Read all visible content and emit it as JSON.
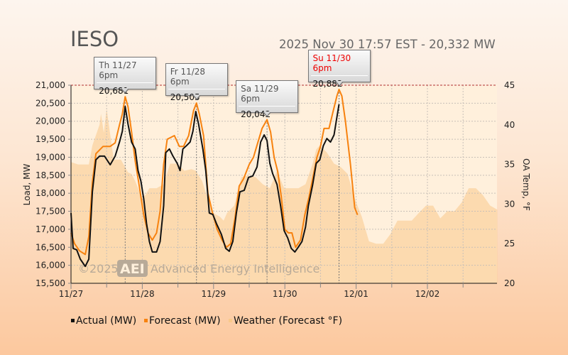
{
  "header": {
    "title": "IESO",
    "subtitle": "2025 Nov 30 17:57 EST - 20,332 MW"
  },
  "colors": {
    "actual": "#111111",
    "forecast": "#f7820f",
    "weather": "#f9c98a",
    "limit": "#b03030"
  },
  "watermark": {
    "year": "©2025",
    "logo": "AEI",
    "text": "Advanced Energy Intelligence"
  },
  "chart_data": {
    "type": "line",
    "x_unit": "days since 11/27 00:00",
    "xlim": [
      0,
      5.98
    ],
    "x_ticks": [
      {
        "v": 0,
        "label": "11/27"
      },
      {
        "v": 1,
        "label": "11/28"
      },
      {
        "v": 2,
        "label": "11/29"
      },
      {
        "v": 3,
        "label": "11/30"
      },
      {
        "v": 4,
        "label": "12/01"
      },
      {
        "v": 5,
        "label": "12/02"
      }
    ],
    "ylabel": "Load, MW",
    "ylim": [
      15500,
      21000
    ],
    "y_ticks": [
      "15,500",
      "16,000",
      "16,500",
      "17,000",
      "17,500",
      "18,000",
      "18,500",
      "19,000",
      "19,500",
      "20,000",
      "20,500",
      "21,000"
    ],
    "y2label": "OA Temp, °F",
    "y2lim": [
      20,
      45
    ],
    "y2_ticks": [
      "20",
      "25",
      "30",
      "35",
      "40",
      "45"
    ],
    "legend_position": "bottom",
    "series": [
      {
        "name": "Actual (MW)",
        "axis": "left",
        "points": [
          [
            0,
            17450
          ],
          [
            0.03,
            16467
          ],
          [
            0.08,
            16430
          ],
          [
            0.13,
            16170
          ],
          [
            0.2,
            15970
          ],
          [
            0.25,
            16170
          ],
          [
            0.3,
            18040
          ],
          [
            0.35,
            18930
          ],
          [
            0.4,
            19030
          ],
          [
            0.47,
            19030
          ],
          [
            0.55,
            18790
          ],
          [
            0.62,
            19030
          ],
          [
            0.68,
            19420
          ],
          [
            0.72,
            19720
          ],
          [
            0.76,
            20410
          ],
          [
            0.8,
            19920
          ],
          [
            0.85,
            19420
          ],
          [
            0.9,
            19230
          ],
          [
            0.94,
            18630
          ],
          [
            0.98,
            18340
          ],
          [
            1.02,
            17850
          ],
          [
            1.06,
            17160
          ],
          [
            1.1,
            16660
          ],
          [
            1.14,
            16370
          ],
          [
            1.2,
            16370
          ],
          [
            1.25,
            16660
          ],
          [
            1.3,
            17650
          ],
          [
            1.33,
            19130
          ],
          [
            1.38,
            19230
          ],
          [
            1.43,
            19030
          ],
          [
            1.49,
            18830
          ],
          [
            1.53,
            18630
          ],
          [
            1.57,
            19230
          ],
          [
            1.62,
            19320
          ],
          [
            1.67,
            19420
          ],
          [
            1.71,
            19720
          ],
          [
            1.75,
            20270
          ],
          [
            1.79,
            19920
          ],
          [
            1.85,
            19230
          ],
          [
            1.89,
            18630
          ],
          [
            1.94,
            17450
          ],
          [
            1.99,
            17410
          ],
          [
            2.04,
            17160
          ],
          [
            2.11,
            16860
          ],
          [
            2.17,
            16470
          ],
          [
            2.22,
            16390
          ],
          [
            2.27,
            16660
          ],
          [
            2.32,
            17450
          ],
          [
            2.37,
            18040
          ],
          [
            2.43,
            18080
          ],
          [
            2.49,
            18440
          ],
          [
            2.55,
            18480
          ],
          [
            2.61,
            18730
          ],
          [
            2.66,
            19420
          ],
          [
            2.71,
            19620
          ],
          [
            2.75,
            19460
          ],
          [
            2.79,
            18830
          ],
          [
            2.83,
            18540
          ],
          [
            2.89,
            18240
          ],
          [
            2.94,
            17650
          ],
          [
            2.99,
            16960
          ],
          [
            3.04,
            16760
          ],
          [
            3.09,
            16470
          ],
          [
            3.14,
            16370
          ],
          [
            3.19,
            16510
          ],
          [
            3.24,
            16660
          ],
          [
            3.29,
            17060
          ],
          [
            3.33,
            17650
          ],
          [
            3.39,
            18240
          ],
          [
            3.44,
            18830
          ],
          [
            3.49,
            18930
          ],
          [
            3.54,
            19320
          ],
          [
            3.59,
            19520
          ],
          [
            3.64,
            19420
          ],
          [
            3.69,
            19620
          ],
          [
            3.73,
            20110
          ],
          [
            3.76,
            20470
          ]
        ]
      },
      {
        "name": "Forecast (MW)",
        "axis": "left",
        "points": [
          [
            0,
            16900
          ],
          [
            0.05,
            16600
          ],
          [
            0.12,
            16400
          ],
          [
            0.2,
            16300
          ],
          [
            0.25,
            16800
          ],
          [
            0.3,
            18300
          ],
          [
            0.35,
            19100
          ],
          [
            0.45,
            19300
          ],
          [
            0.55,
            19300
          ],
          [
            0.62,
            19400
          ],
          [
            0.68,
            19900
          ],
          [
            0.72,
            20200
          ],
          [
            0.76,
            20681
          ],
          [
            0.8,
            20400
          ],
          [
            0.85,
            19700
          ],
          [
            0.9,
            18900
          ],
          [
            0.95,
            18300
          ],
          [
            1.02,
            17400
          ],
          [
            1.08,
            16900
          ],
          [
            1.14,
            16700
          ],
          [
            1.2,
            16900
          ],
          [
            1.25,
            17500
          ],
          [
            1.3,
            18800
          ],
          [
            1.35,
            19500
          ],
          [
            1.45,
            19600
          ],
          [
            1.52,
            19300
          ],
          [
            1.58,
            19300
          ],
          [
            1.65,
            19600
          ],
          [
            1.72,
            20300
          ],
          [
            1.76,
            20505
          ],
          [
            1.8,
            20200
          ],
          [
            1.86,
            19600
          ],
          [
            1.92,
            18000
          ],
          [
            1.98,
            17500
          ],
          [
            2.05,
            17000
          ],
          [
            2.12,
            16700
          ],
          [
            2.18,
            16500
          ],
          [
            2.24,
            16600
          ],
          [
            2.3,
            17300
          ],
          [
            2.36,
            18200
          ],
          [
            2.42,
            18400
          ],
          [
            2.5,
            18800
          ],
          [
            2.56,
            19000
          ],
          [
            2.62,
            19400
          ],
          [
            2.68,
            19800
          ],
          [
            2.75,
            20042
          ],
          [
            2.8,
            19700
          ],
          [
            2.85,
            19000
          ],
          [
            2.9,
            18600
          ],
          [
            2.95,
            17900
          ],
          [
            3,
            17000
          ],
          [
            3.05,
            16900
          ],
          [
            3.1,
            16900
          ],
          [
            3.15,
            16500
          ],
          [
            3.22,
            16700
          ],
          [
            3.28,
            17400
          ],
          [
            3.34,
            17900
          ],
          [
            3.4,
            18500
          ],
          [
            3.45,
            19000
          ],
          [
            3.5,
            19300
          ],
          [
            3.55,
            19800
          ],
          [
            3.62,
            19800
          ],
          [
            3.68,
            20300
          ],
          [
            3.73,
            20700
          ],
          [
            3.76,
            20882
          ],
          [
            3.8,
            20700
          ],
          [
            3.85,
            20000
          ],
          [
            3.92,
            18800
          ],
          [
            3.98,
            17600
          ],
          [
            4.02,
            17400
          ]
        ]
      },
      {
        "name": "Weather (Forecast °F)",
        "axis": "right",
        "type": "area",
        "points": [
          [
            0,
            35.3
          ],
          [
            0.1,
            35
          ],
          [
            0.25,
            35
          ],
          [
            0.3,
            37.4
          ],
          [
            0.4,
            40
          ],
          [
            0.42,
            41.4
          ],
          [
            0.46,
            39
          ],
          [
            0.5,
            42
          ],
          [
            0.55,
            38.8
          ],
          [
            0.6,
            35.6
          ],
          [
            0.7,
            35.6
          ],
          [
            0.8,
            34
          ],
          [
            0.85,
            33.8
          ],
          [
            0.9,
            32.9
          ],
          [
            1,
            30.7
          ],
          [
            1.05,
            31.2
          ],
          [
            1.1,
            32
          ],
          [
            1.2,
            32
          ],
          [
            1.3,
            32.5
          ],
          [
            1.39,
            35.1
          ],
          [
            1.49,
            35.1
          ],
          [
            1.59,
            34.2
          ],
          [
            1.69,
            34.4
          ],
          [
            1.75,
            34.2
          ],
          [
            1.84,
            32.9
          ],
          [
            1.89,
            31.5
          ],
          [
            1.99,
            28.9
          ],
          [
            2.09,
            28.4
          ],
          [
            2.14,
            27.9
          ],
          [
            2.19,
            28.9
          ],
          [
            2.29,
            29.8
          ],
          [
            2.39,
            33.4
          ],
          [
            2.49,
            33.6
          ],
          [
            2.59,
            33.4
          ],
          [
            2.69,
            32.5
          ],
          [
            2.79,
            32
          ],
          [
            2.89,
            34.2
          ],
          [
            2.99,
            32
          ],
          [
            3.09,
            32
          ],
          [
            3.19,
            32
          ],
          [
            3.29,
            32.5
          ],
          [
            3.39,
            35.1
          ],
          [
            3.44,
            36.9
          ],
          [
            3.49,
            37.4
          ],
          [
            3.59,
            36.5
          ],
          [
            3.69,
            35.1
          ],
          [
            3.78,
            34.7
          ],
          [
            3.88,
            33.8
          ],
          [
            3.98,
            30.7
          ],
          [
            4.08,
            28.4
          ],
          [
            4.18,
            25.3
          ],
          [
            4.28,
            25
          ],
          [
            4.38,
            25
          ],
          [
            4.48,
            26.2
          ],
          [
            4.58,
            27.9
          ],
          [
            4.68,
            27.9
          ],
          [
            4.78,
            27.9
          ],
          [
            4.88,
            28.9
          ],
          [
            4.98,
            29.8
          ],
          [
            5.08,
            29.8
          ],
          [
            5.18,
            28.2
          ],
          [
            5.28,
            29.1
          ],
          [
            5.38,
            29.1
          ],
          [
            5.48,
            30.2
          ],
          [
            5.58,
            32
          ],
          [
            5.68,
            32
          ],
          [
            5.78,
            31.1
          ],
          [
            5.88,
            29.8
          ],
          [
            5.98,
            29.3
          ]
        ]
      }
    ],
    "annotations": [
      {
        "x": 0.76,
        "value_mw": 20681,
        "label": "Th 11/27 6pm",
        "value": "20,681",
        "latest": false
      },
      {
        "x": 1.76,
        "value_mw": 20505,
        "label": "Fr 11/28 6pm",
        "value": "20,505",
        "latest": false
      },
      {
        "x": 2.75,
        "value_mw": 20042,
        "label": "Sa 11/29 6pm",
        "value": "20,042",
        "latest": false
      },
      {
        "x": 3.76,
        "value_mw": 20882,
        "label": "Su 11/30 6pm",
        "value": "20,882",
        "latest": true
      }
    ]
  }
}
